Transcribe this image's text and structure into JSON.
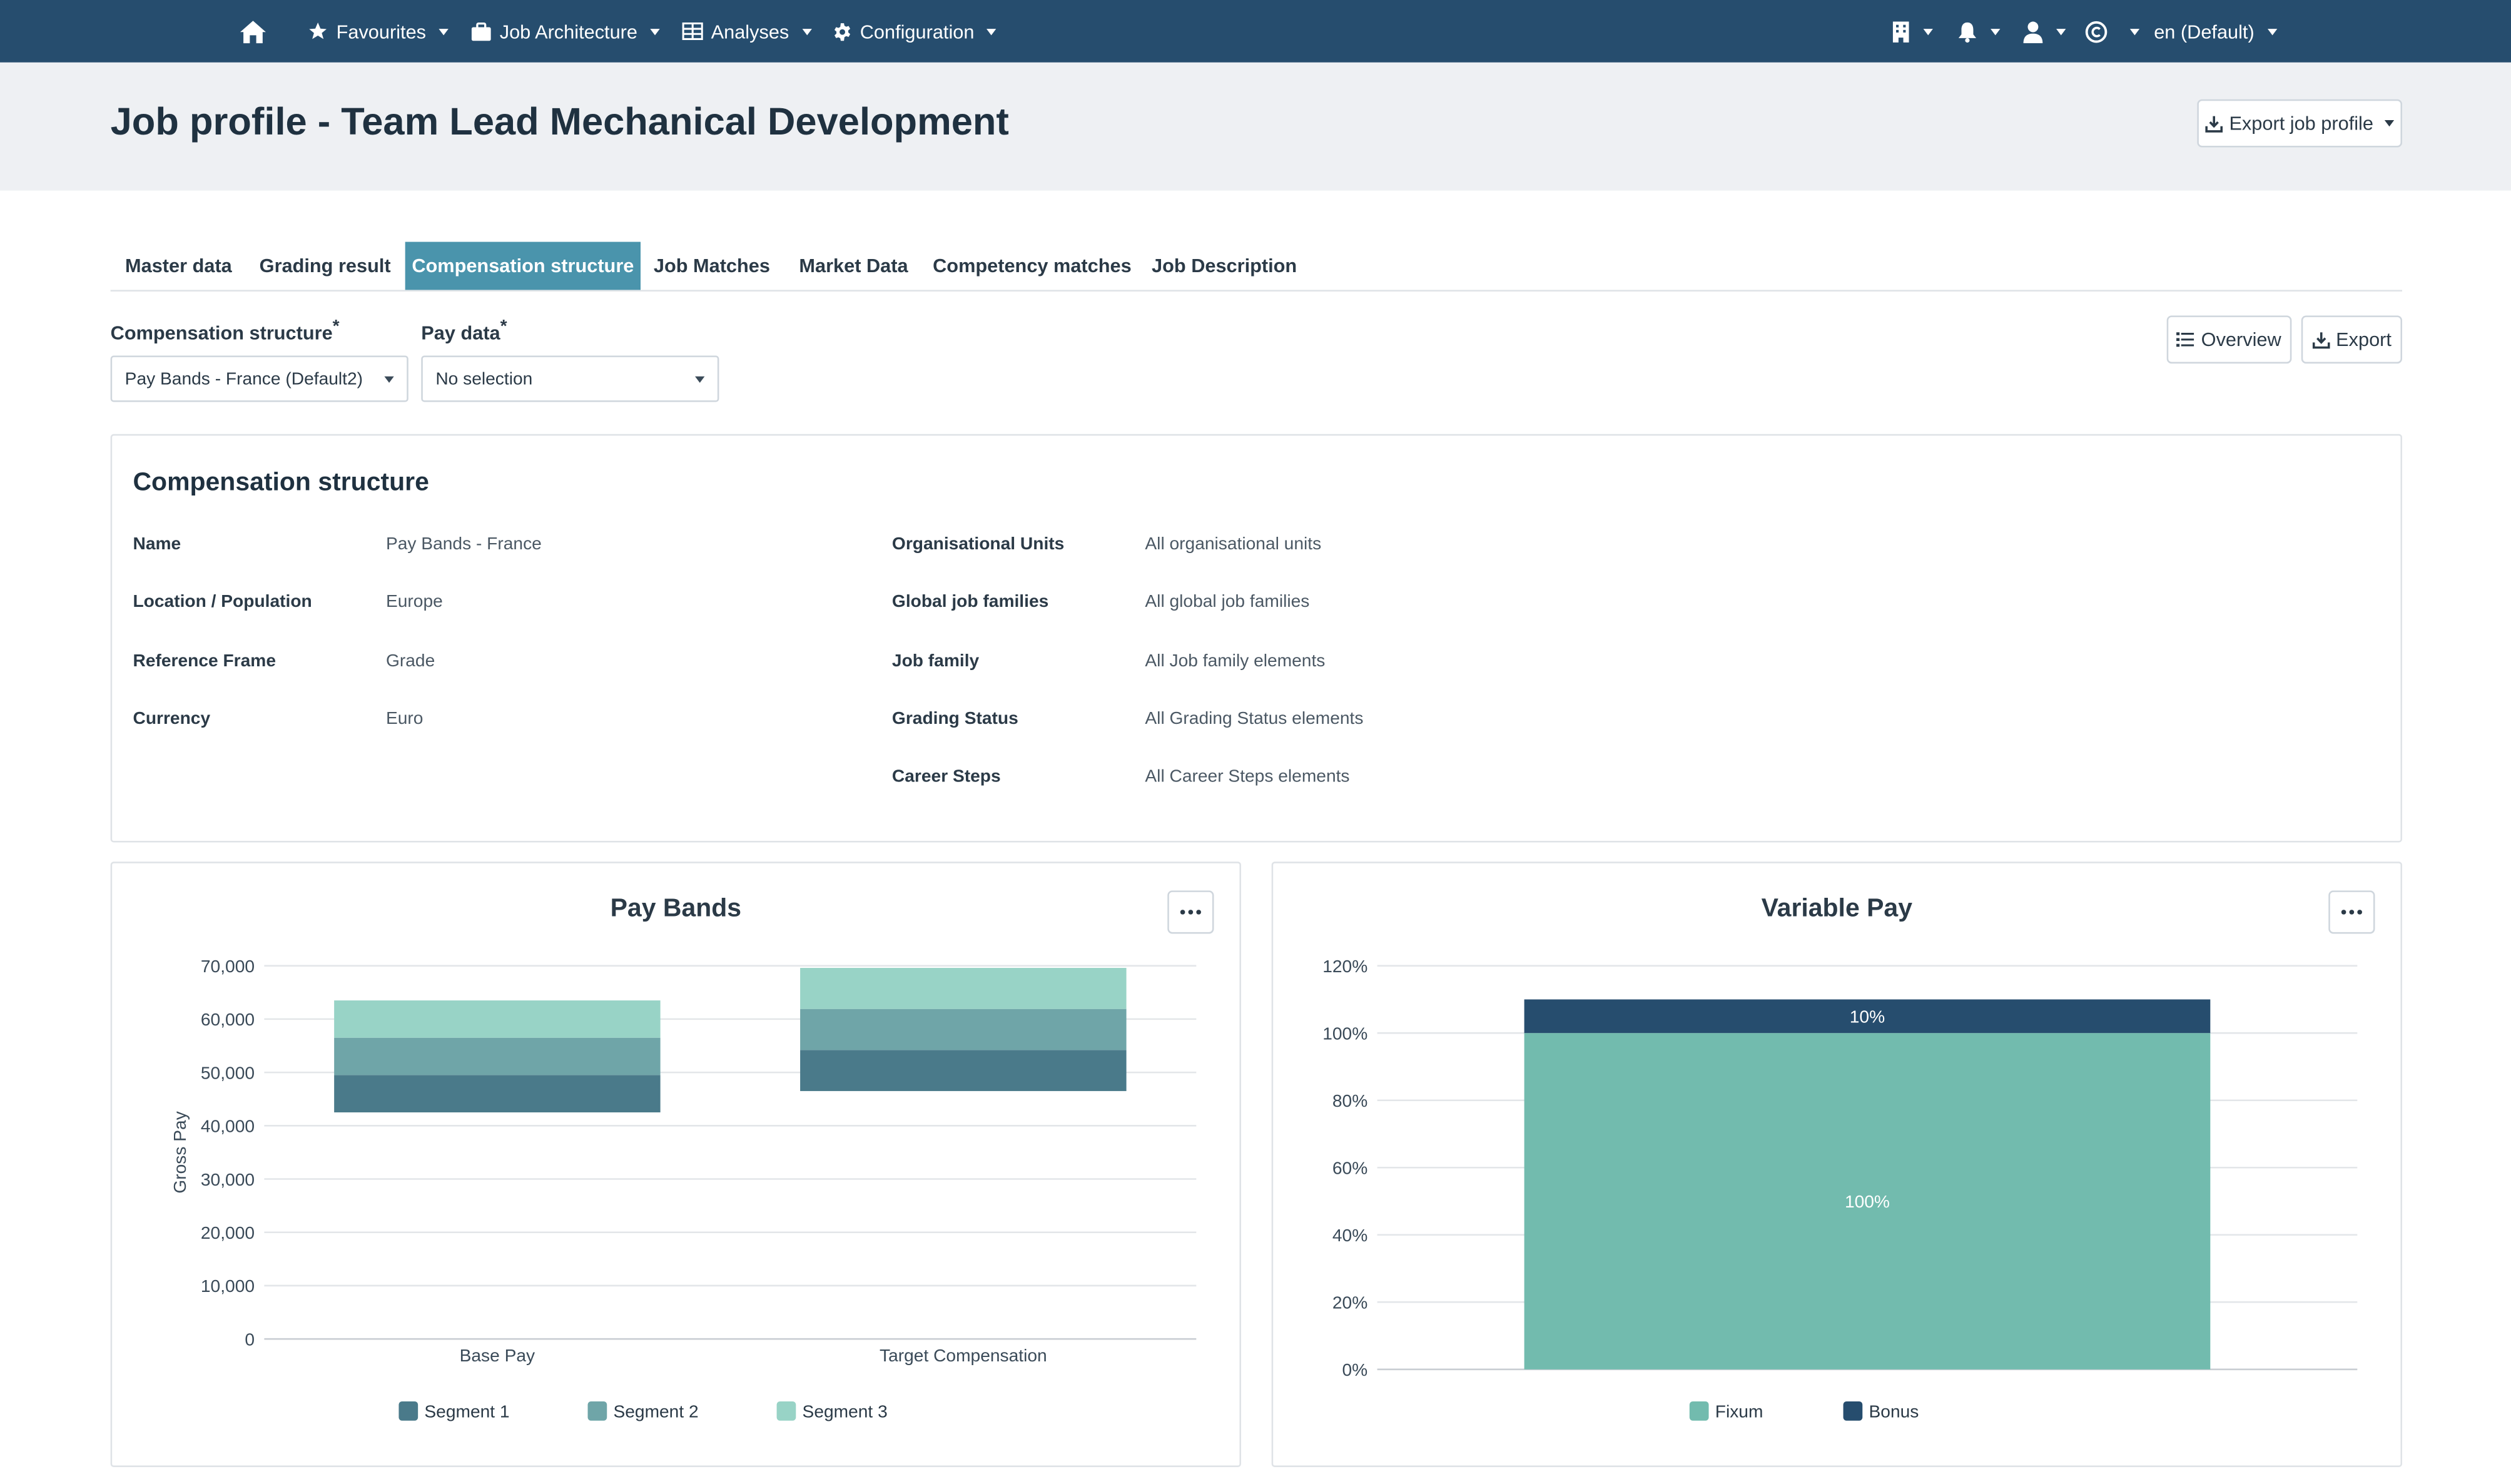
{
  "nav": {
    "favourites": "Favourites",
    "job_architecture": "Job Architecture",
    "analyses": "Analyses",
    "configuration": "Configuration",
    "language": "en (Default)"
  },
  "header": {
    "title": "Job profile - Team Lead Mechanical Development",
    "export_button": "Export job profile"
  },
  "tabs": [
    {
      "label": "Master data",
      "active": false
    },
    {
      "label": "Grading result",
      "active": false
    },
    {
      "label": "Compensation structure",
      "active": true
    },
    {
      "label": "Job Matches",
      "active": false
    },
    {
      "label": "Market Data",
      "active": false
    },
    {
      "label": "Competency matches",
      "active": false
    },
    {
      "label": "Job Description",
      "active": false
    }
  ],
  "selectors": {
    "compensation_structure_label": "Compensation structure",
    "compensation_structure_value": "Pay Bands - France (Default2)",
    "pay_data_label": "Pay data",
    "pay_data_value": "No selection",
    "required_marker": "*"
  },
  "actions": {
    "overview": "Overview",
    "export": "Export"
  },
  "details": {
    "title": "Compensation structure",
    "left": [
      {
        "label": "Name",
        "value": "Pay Bands - France"
      },
      {
        "label": "Location / Population",
        "value": "Europe"
      },
      {
        "label": "Reference Frame",
        "value": "Grade"
      },
      {
        "label": "Currency",
        "value": "Euro"
      }
    ],
    "right": [
      {
        "label": "Organisational Units",
        "value": "All organisational units"
      },
      {
        "label": "Global job families",
        "value": "All global job families"
      },
      {
        "label": "Job family",
        "value": "All Job family elements"
      },
      {
        "label": "Grading Status",
        "value": "All Grading Status elements"
      },
      {
        "label": "Career Steps",
        "value": "All Career Steps elements"
      }
    ]
  },
  "colors": {
    "navbar": "#264d6e",
    "active_tab": "#4a94ac",
    "segment1": "#4a7a8a",
    "segment2": "#6fa5a8",
    "segment3": "#98d3c6",
    "fixum": "#72bbae",
    "bonus": "#264d6e"
  },
  "chart_data": [
    {
      "type": "bar",
      "stacked": true,
      "title": "Pay Bands",
      "ylabel": "Gross Pay",
      "xlabel": "",
      "categories": [
        "Base Pay",
        "Target Compensation"
      ],
      "ylim": [
        0,
        70000
      ],
      "yticks": [
        0,
        10000,
        20000,
        30000,
        40000,
        50000,
        60000,
        70000
      ],
      "ytick_labels": [
        "0",
        "10,000",
        "20,000",
        "30,000",
        "40,000",
        "50,000",
        "60,000",
        "70,000"
      ],
      "floating_base": [
        42500,
        46500
      ],
      "series": [
        {
          "name": "Segment 1",
          "values": [
            7000,
            7700
          ]
        },
        {
          "name": "Segment 2",
          "values": [
            7000,
            7700
          ]
        },
        {
          "name": "Segment 3",
          "values": [
            7000,
            7700
          ]
        }
      ],
      "grid": true,
      "legend": "bottom"
    },
    {
      "type": "bar",
      "stacked": true,
      "title": "Variable Pay",
      "xlabel": "",
      "ylabel": "",
      "categories": [
        ""
      ],
      "ylim": [
        0,
        120
      ],
      "yticks": [
        0,
        20,
        40,
        60,
        80,
        100,
        120
      ],
      "ytick_labels": [
        "0%",
        "20%",
        "40%",
        "60%",
        "80%",
        "100%",
        "120%"
      ],
      "series": [
        {
          "name": "Fixum",
          "values": [
            100
          ],
          "label": "100%"
        },
        {
          "name": "Bonus",
          "values": [
            10
          ],
          "label": "10%"
        }
      ],
      "grid": true,
      "legend": "bottom"
    }
  ]
}
